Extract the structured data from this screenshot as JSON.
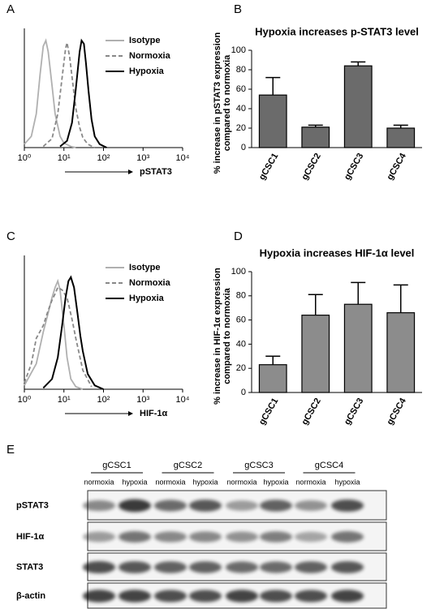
{
  "chart_data": [
    {
      "type": "line",
      "panel": "A",
      "xlabel": "pSTAT3",
      "log_x": true,
      "xlim": [
        1,
        10000
      ],
      "ylim": [
        0,
        100
      ],
      "xticks": [
        {
          "value": 1,
          "label": "10⁰"
        },
        {
          "value": 10,
          "label": "10¹"
        },
        {
          "value": 100,
          "label": "10²"
        },
        {
          "value": 1000,
          "label": "10³"
        },
        {
          "value": 10000,
          "label": "10⁴"
        }
      ],
      "series": [
        {
          "name": "Isotype",
          "color": "#b0b0b0",
          "dashed": false,
          "x": [
            1,
            1.5,
            2,
            2.5,
            3,
            3.5,
            4,
            5,
            6,
            8,
            10,
            15,
            20
          ],
          "values": [
            3,
            10,
            30,
            65,
            90,
            95,
            85,
            55,
            30,
            10,
            4,
            1,
            0
          ]
        },
        {
          "name": "Normoxia",
          "color": "#888888",
          "dashed": true,
          "x": [
            3,
            5,
            7,
            9,
            11,
            12,
            14,
            17,
            20,
            25,
            30,
            40,
            60
          ],
          "values": [
            1,
            8,
            30,
            62,
            88,
            93,
            80,
            55,
            35,
            18,
            9,
            3,
            0
          ]
        },
        {
          "name": "Hypoxia",
          "color": "#000000",
          "dashed": false,
          "x": [
            8,
            12,
            16,
            20,
            25,
            28,
            32,
            36,
            42,
            50,
            60,
            80,
            120
          ],
          "values": [
            1,
            6,
            22,
            52,
            85,
            95,
            92,
            75,
            50,
            25,
            10,
            3,
            0
          ]
        }
      ]
    },
    {
      "type": "bar",
      "panel": "B",
      "title": "Hypoxia increases p-STAT3 level",
      "ylabel": [
        "% increase in pSTAT3 expression",
        "compared to normoxia"
      ],
      "categories": [
        "gCSC1",
        "gCSC2",
        "gCSC3",
        "gCSC4"
      ],
      "values": [
        54,
        21,
        84,
        20
      ],
      "errors": [
        18,
        2,
        4,
        3
      ],
      "color": "#6b6b6b",
      "ylim": [
        0,
        100
      ],
      "yticks": [
        0,
        20,
        40,
        60,
        80,
        100
      ]
    },
    {
      "type": "line",
      "panel": "C",
      "xlabel": "HIF-1α",
      "log_x": true,
      "xlim": [
        1,
        10000
      ],
      "ylim": [
        0,
        100
      ],
      "xticks": [
        {
          "value": 1,
          "label": "10⁰"
        },
        {
          "value": 10,
          "label": "10¹"
        },
        {
          "value": 100,
          "label": "10²"
        },
        {
          "value": 1000,
          "label": "10³"
        },
        {
          "value": 10000,
          "label": "10⁴"
        }
      ],
      "series": [
        {
          "name": "Isotype",
          "color": "#b0b0b0",
          "dashed": false,
          "x": [
            1,
            2,
            3,
            4,
            5,
            6,
            7,
            8,
            10,
            12,
            15,
            20,
            30
          ],
          "values": [
            3,
            20,
            45,
            60,
            72,
            80,
            85,
            78,
            50,
            25,
            8,
            2,
            0
          ]
        },
        {
          "name": "Normoxia",
          "color": "#888888",
          "dashed": true,
          "x": [
            1,
            1.5,
            2,
            3,
            4,
            5,
            6,
            7,
            9,
            12,
            16,
            20,
            30,
            50
          ],
          "values": [
            5,
            20,
            40,
            50,
            62,
            70,
            75,
            80,
            78,
            72,
            55,
            40,
            15,
            2
          ]
        },
        {
          "name": "Hypoxia",
          "color": "#000000",
          "dashed": false,
          "x": [
            3,
            5,
            7,
            9,
            11,
            13,
            15,
            18,
            22,
            26,
            30,
            40,
            60,
            100
          ],
          "values": [
            1,
            8,
            25,
            50,
            72,
            85,
            88,
            80,
            60,
            42,
            30,
            12,
            3,
            0
          ]
        }
      ]
    },
    {
      "type": "bar",
      "panel": "D",
      "title": "Hypoxia increases HIF-1α level",
      "ylabel": [
        "% increase in HIF-1α expression",
        "compared to normoxia"
      ],
      "categories": [
        "gCSC1",
        "gCSC2",
        "gCSC3",
        "gCSC4"
      ],
      "values": [
        23,
        64,
        73,
        66
      ],
      "errors": [
        7,
        17,
        18,
        23
      ],
      "color": "#8c8c8c",
      "ylim": [
        0,
        100
      ],
      "yticks": [
        0,
        20,
        40,
        60,
        80,
        100
      ]
    }
  ],
  "western_blot": {
    "panel": "E",
    "groups": [
      "gCSC1",
      "gCSC2",
      "gCSC3",
      "gCSC4"
    ],
    "conditions": [
      "normoxia",
      "hypoxia",
      "normoxia",
      "hypoxia",
      "normoxia",
      "hypoxia",
      "normoxia",
      "hypoxia"
    ],
    "rows": [
      "pSTAT3",
      "HIF-1α",
      "STAT3",
      "β-actin"
    ]
  }
}
